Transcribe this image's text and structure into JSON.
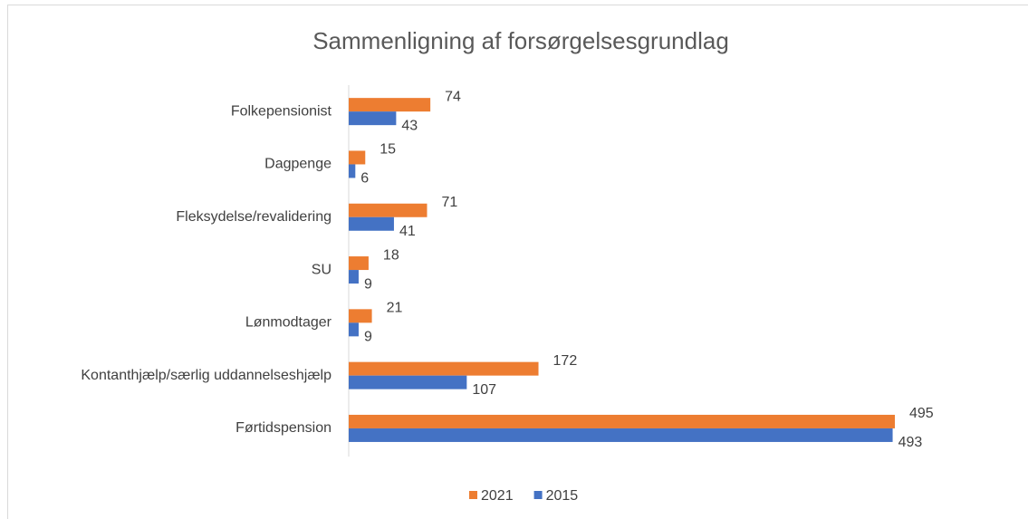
{
  "chart_data": {
    "type": "bar",
    "orientation": "horizontal",
    "title": "Sammenligning  af forsørgelsesgrundlag",
    "categories": [
      "Folkepensionist",
      "Dagpenge",
      "Fleksydelse/revalidering",
      "SU",
      "Lønmodtager",
      "Kontanthjælp/særlig uddannelseshjælp",
      "Førtidspension"
    ],
    "series": [
      {
        "name": "2021",
        "color": "#ed7d31",
        "values": [
          74,
          15,
          71,
          18,
          21,
          172,
          495
        ]
      },
      {
        "name": "2015",
        "color": "#4472c4",
        "values": [
          43,
          6,
          41,
          9,
          9,
          107,
          493
        ]
      }
    ],
    "legend": "bottom"
  }
}
